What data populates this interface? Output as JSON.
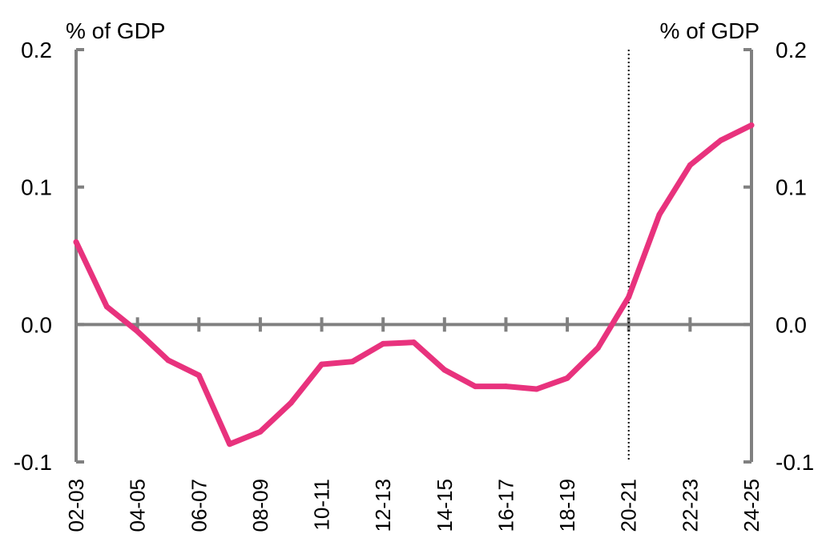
{
  "chart_data": {
    "type": "line",
    "title": "",
    "ylabel_left": "% of GDP",
    "ylabel_right": "% of GDP",
    "ylim": [
      -0.1,
      0.2
    ],
    "yticks": [
      "0.2",
      "0.1",
      "0.0",
      "-0.1"
    ],
    "ytick_values": [
      0.2,
      0.1,
      0.0,
      -0.1
    ],
    "x_tick_labels": [
      "02-03",
      "04-05",
      "06-07",
      "08-09",
      "10-11",
      "12-13",
      "14-15",
      "16-17",
      "18-19",
      "20-21",
      "22-23",
      "24-25"
    ],
    "x": [
      "02-03",
      "03-04",
      "04-05",
      "05-06",
      "06-07",
      "07-08",
      "08-09",
      "09-10",
      "10-11",
      "11-12",
      "12-13",
      "13-14",
      "14-15",
      "15-16",
      "16-17",
      "17-18",
      "18-19",
      "19-20",
      "20-21",
      "21-22",
      "22-23",
      "23-24",
      "24-25"
    ],
    "series": [
      {
        "values": [
          0.06,
          0.013,
          -0.005,
          -0.026,
          -0.037,
          -0.087,
          -0.078,
          -0.057,
          -0.029,
          -0.027,
          -0.014,
          -0.013,
          -0.033,
          -0.045,
          -0.045,
          -0.047,
          -0.039,
          -0.017,
          0.02,
          0.08,
          0.116,
          0.134,
          0.145
        ],
        "color": "#E8327D"
      }
    ],
    "vertical_marker_at": "20-21",
    "grid": false,
    "colors": {
      "axis": "#808080",
      "line": "#E8327D",
      "marker": "#000000"
    }
  }
}
